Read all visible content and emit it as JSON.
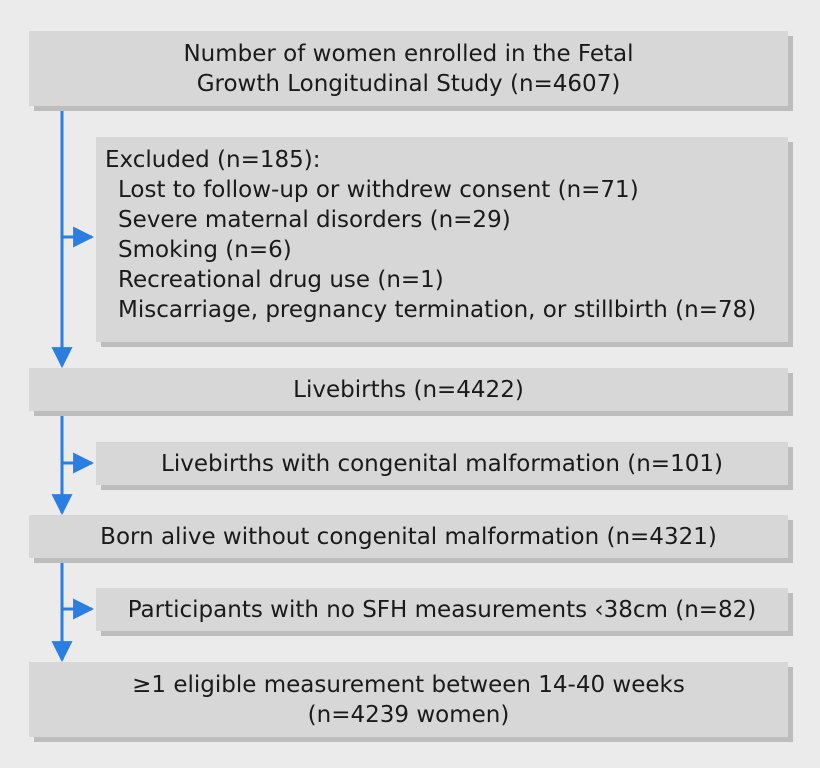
{
  "enrolled": {
    "line1": "Number of women enrolled in the Fetal",
    "line2": "Growth Longitudinal Study (n=4607)"
  },
  "excluded": {
    "heading": "Excluded (n=185):",
    "items": [
      "Lost to follow-up or withdrew consent (n=71)",
      "Severe maternal disorders (n=29)",
      "Smoking (n=6)",
      "Recreational drug use (n=1)",
      "Miscarriage, pregnancy termination, or stillbirth (n=78)"
    ]
  },
  "livebirths": {
    "label": "Livebirths (n=4422)"
  },
  "malformation": {
    "label": "Livebirths with congenital malformation (n=101)"
  },
  "born_alive": {
    "label": "Born alive without congenital malformation (n=4321)"
  },
  "no_sfh": {
    "label": "Participants with no SFH measurements ‹38cm (n=82)"
  },
  "eligible": {
    "line1": "≥1 eligible measurement between 14-40 weeks",
    "line2": "(n=4239 women)"
  },
  "colors": {
    "arrow": "#2a7de1",
    "box": "#d7d7d7",
    "shadow": "#bdbdbd",
    "background": "#ebebeb"
  }
}
